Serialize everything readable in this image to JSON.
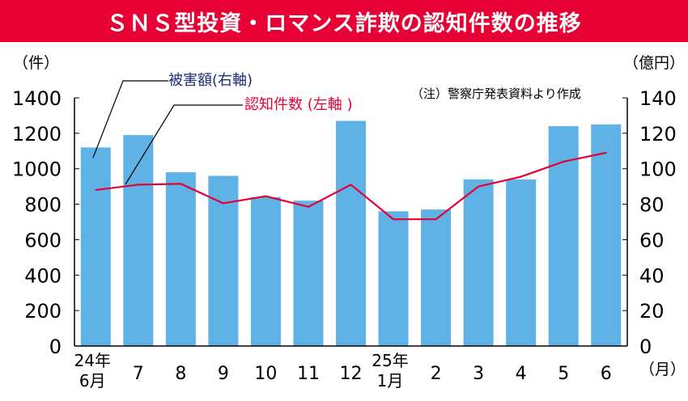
{
  "header": {
    "title": "ＳＮＳ型投資・ロマンス詐欺の認知件数の推移"
  },
  "chart_data": {
    "type": "bar",
    "categories": [
      "24年\n6月",
      "7",
      "8",
      "9",
      "10",
      "11",
      "12",
      "25年\n1月",
      "2",
      "3",
      "4",
      "5",
      "6"
    ],
    "series": [
      {
        "name": "被害額(右軸)",
        "type": "bar",
        "axis": "right",
        "color": "#5eb2e6",
        "values": [
          112,
          119,
          98,
          96,
          84,
          82,
          127,
          76,
          77,
          94,
          94,
          124,
          125
        ]
      },
      {
        "name": "認知件数 (左軸 )",
        "type": "line",
        "axis": "left",
        "color": "#e60033",
        "values": [
          880,
          910,
          915,
          805,
          845,
          785,
          910,
          715,
          715,
          900,
          955,
          1040,
          1090
        ]
      }
    ],
    "left_axis": {
      "unit_label": "（件）",
      "ylim": [
        0,
        1400
      ],
      "ticks": [
        "0",
        "200",
        "400",
        "600",
        "800",
        "1000",
        "1200",
        "1400"
      ]
    },
    "right_axis": {
      "unit_label": "（億円）",
      "ylim": [
        0,
        140
      ],
      "ticks": [
        "0",
        "20",
        "40",
        "60",
        "80",
        "100",
        "120",
        "140"
      ]
    },
    "x_unit_label": "（月）",
    "annotations": {
      "bar_callout": "被害額(右軸)",
      "line_callout": "認知件数 (左軸 )",
      "note": "（注）警察庁発表資料より作成"
    },
    "grid": false,
    "colors": {
      "title_bg": "#e60033",
      "bar": "#5eb2e6",
      "line": "#e60033",
      "bar_label": "#1e2a7a",
      "line_label": "#e60033",
      "text": "#000000"
    }
  }
}
